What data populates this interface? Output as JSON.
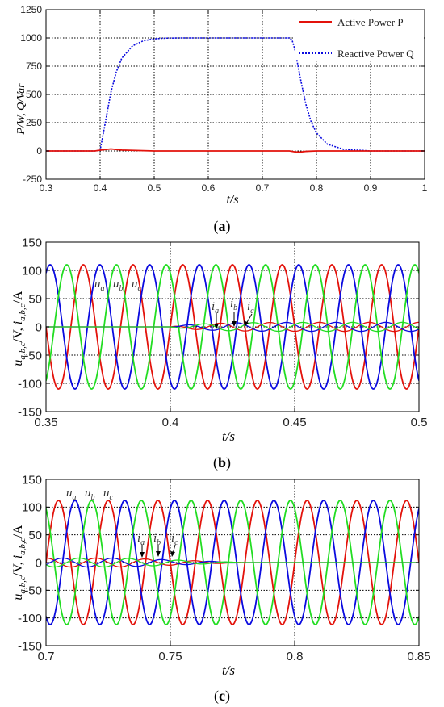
{
  "colors": {
    "red": "#e3120b",
    "blue": "#0a0adf",
    "green": "#22dd22",
    "axis": "#000000",
    "grid": "#000000"
  },
  "panels": [
    {
      "id": "a",
      "caption": "a",
      "xlabel": "t/s",
      "ylabel": "P/W, Q/Var",
      "legend": [
        "Active Power P",
        "Reactive Power Q"
      ]
    },
    {
      "id": "b",
      "caption": "b",
      "xlabel": "t/s",
      "ylabel": "u_{a,b,c}/V, i_{a,b,c}/A",
      "voltage_labels": [
        "u_a",
        "u_b",
        "u_c"
      ],
      "current_labels": [
        "i_a",
        "i_b",
        "i_c"
      ]
    },
    {
      "id": "c",
      "caption": "c",
      "xlabel": "t/s",
      "ylabel": "u_{a,b,c}/V, i_{a,b,c}/A",
      "voltage_labels": [
        "u_a",
        "u_b",
        "u_c"
      ],
      "current_labels": [
        "i_a",
        "i_b",
        "i_c"
      ]
    }
  ],
  "chart_data": [
    {
      "type": "line",
      "title": "",
      "xlabel": "t/s",
      "ylabel": "P/W, Q/Var",
      "xlim": [
        0.3,
        1.0
      ],
      "ylim": [
        -250,
        1250
      ],
      "xticks": [
        "0.3",
        "0.4",
        "0.5",
        "0.6",
        "0.7",
        "0.8",
        "0.9",
        "1"
      ],
      "yticks": [
        "-250",
        "0",
        "250",
        "500",
        "750",
        "1000",
        "1250"
      ],
      "grid": true,
      "legend_position": "top-right",
      "series": [
        {
          "name": "Active Power P",
          "color": "#e3120b",
          "style": "solid",
          "x": [
            0.3,
            0.39,
            0.405,
            0.42,
            0.44,
            0.5,
            0.6,
            0.75,
            0.76,
            0.77,
            0.78,
            0.8,
            1.0
          ],
          "y": [
            0,
            0,
            10,
            18,
            8,
            0,
            0,
            0,
            -8,
            -10,
            -4,
            0,
            0
          ]
        },
        {
          "name": "Reactive Power Q",
          "color": "#0a0adf",
          "style": "dotted",
          "x": [
            0.3,
            0.39,
            0.4,
            0.41,
            0.42,
            0.43,
            0.44,
            0.46,
            0.48,
            0.5,
            0.52,
            0.55,
            0.6,
            0.7,
            0.75,
            0.755,
            0.76,
            0.77,
            0.78,
            0.79,
            0.8,
            0.82,
            0.85,
            0.9,
            1.0
          ],
          "y": [
            0,
            0,
            5,
            260,
            520,
            700,
            820,
            930,
            975,
            992,
            998,
            1000,
            1000,
            1000,
            1000,
            980,
            900,
            650,
            420,
            260,
            160,
            60,
            15,
            0,
            0
          ]
        }
      ]
    },
    {
      "type": "line",
      "title": "",
      "xlabel": "t/s",
      "ylabel": "u_{a,b,c}/V, i_{a,b,c}/A",
      "xlim": [
        0.35,
        0.5
      ],
      "ylim": [
        -150,
        150
      ],
      "xticks": [
        "0.35",
        "0.4",
        "0.45",
        "0.5"
      ],
      "yticks": [
        "-150",
        "-100",
        "-50",
        "0",
        "50",
        "100",
        "150"
      ],
      "grid": true,
      "signal": {
        "frequency_hz": 50,
        "voltage_amplitude": 110,
        "current_start_s": 0.4,
        "current_amplitude_max": 8,
        "current_ramp": "up"
      },
      "series": [
        {
          "name": "u_a",
          "color": "#e3120b",
          "phase_deg": 0
        },
        {
          "name": "u_b",
          "color": "#0a0adf",
          "phase_deg": -120
        },
        {
          "name": "u_c",
          "color": "#22dd22",
          "phase_deg": 120
        },
        {
          "name": "i_a",
          "color": "#e3120b",
          "phase_deg": 90
        },
        {
          "name": "i_b",
          "color": "#0a0adf",
          "phase_deg": -30
        },
        {
          "name": "i_c",
          "color": "#22dd22",
          "phase_deg": 210
        }
      ]
    },
    {
      "type": "line",
      "title": "",
      "xlabel": "t/s",
      "ylabel": "u_{a,b,c}/V, i_{a,b,c}/A",
      "xlim": [
        0.7,
        0.85
      ],
      "ylim": [
        -150,
        150
      ],
      "xticks": [
        "0.7",
        "0.75",
        "0.8",
        "0.85"
      ],
      "yticks": [
        "-150",
        "-100",
        "-50",
        "0",
        "50",
        "100",
        "150"
      ],
      "grid": true,
      "signal": {
        "frequency_hz": 50,
        "voltage_amplitude": 112,
        "current_stop_s": 0.78,
        "current_amplitude_max": 8,
        "current_ramp": "down"
      },
      "series": [
        {
          "name": "u_a",
          "color": "#e3120b",
          "phase_deg": 0
        },
        {
          "name": "u_b",
          "color": "#0a0adf",
          "phase_deg": -120
        },
        {
          "name": "u_c",
          "color": "#22dd22",
          "phase_deg": 120
        },
        {
          "name": "i_a",
          "color": "#e3120b",
          "phase_deg": 90
        },
        {
          "name": "i_b",
          "color": "#0a0adf",
          "phase_deg": -30
        },
        {
          "name": "i_c",
          "color": "#22dd22",
          "phase_deg": 210
        }
      ]
    }
  ]
}
